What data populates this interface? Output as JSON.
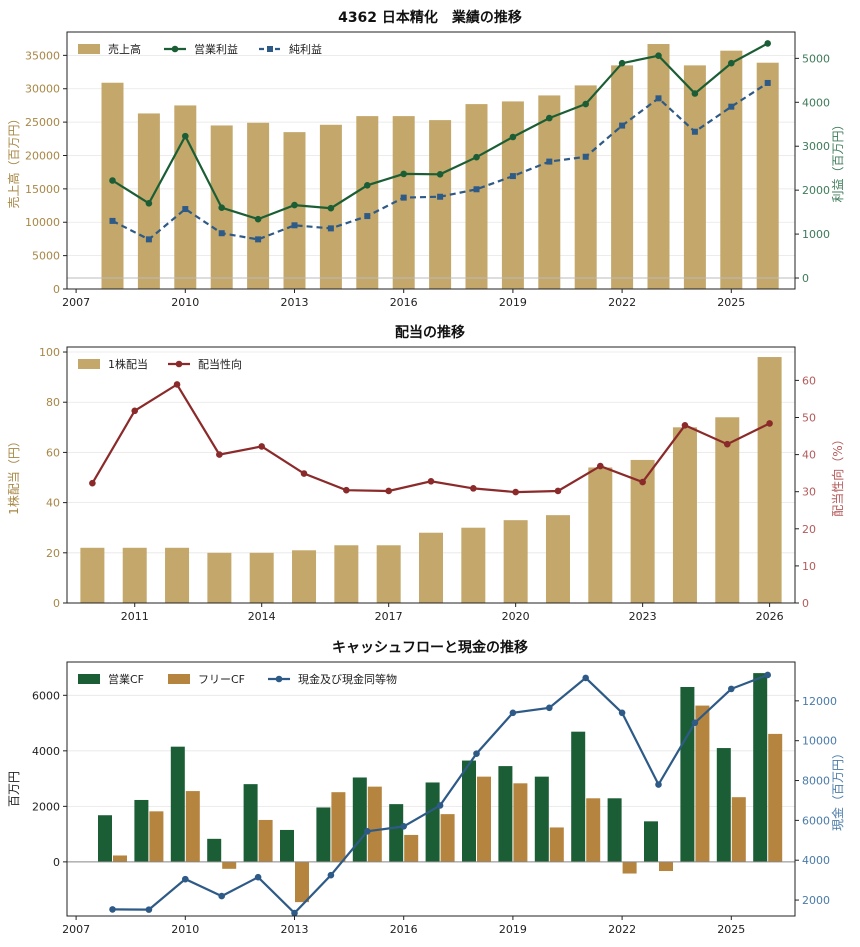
{
  "colors": {
    "gold": "#c4a76b",
    "green": "#1b5e35",
    "blue": "#2e5a87",
    "red": "#8b2a2a",
    "ocher": "#b5843e",
    "gold_text": "#a88746",
    "green_text": "#3e7b5a",
    "blue_text": "#4a7ba8",
    "red_text": "#b45a5a",
    "ink": "#222222"
  },
  "chart_data": [
    {
      "type": "bar",
      "title": "4362 日本精化　業績の推移",
      "ylabel": "売上高（百万円）",
      "y2label": "利益（百万円）",
      "xlim": [
        2006.75,
        2026.75
      ],
      "ylim": [
        0,
        38500
      ],
      "y2lim": [
        -250,
        5600
      ],
      "xticks": [
        2007,
        2010,
        2013,
        2016,
        2019,
        2022,
        2025
      ],
      "yticks": [
        0,
        5000,
        10000,
        15000,
        20000,
        25000,
        30000,
        35000
      ],
      "y2ticks": [
        0,
        1000,
        2000,
        3000,
        4000,
        5000
      ],
      "legend_position": "top-left",
      "x": [
        2008,
        2009,
        2010,
        2011,
        2012,
        2013,
        2014,
        2015,
        2016,
        2017,
        2018,
        2019,
        2020,
        2021,
        2022,
        2023,
        2024,
        2025,
        2026
      ],
      "series": [
        {
          "name": "売上高",
          "kind": "bar",
          "axis": "left",
          "color": "#c4a76b",
          "values": [
            30900,
            26300,
            27500,
            24500,
            24900,
            23500,
            24600,
            25900,
            25900,
            25300,
            27700,
            28100,
            29000,
            30500,
            33500,
            36700,
            33500,
            35700,
            33900
          ]
        },
        {
          "name": "営業利益",
          "kind": "line",
          "axis": "right",
          "color": "#1b5e35",
          "marker": "circle",
          "values": [
            2220,
            1700,
            3230,
            1600,
            1340,
            1660,
            1590,
            2110,
            2370,
            2360,
            2750,
            3210,
            3640,
            3960,
            4890,
            5060,
            4200,
            4890,
            5340
          ]
        },
        {
          "name": "純利益",
          "kind": "line",
          "axis": "right",
          "color": "#2e5a87",
          "marker": "square",
          "dashed": true,
          "values": [
            1300,
            880,
            1570,
            1020,
            880,
            1200,
            1130,
            1410,
            1830,
            1850,
            2020,
            2320,
            2650,
            2760,
            3470,
            4090,
            3330,
            3900,
            4440
          ]
        }
      ]
    },
    {
      "type": "bar",
      "title": "配当の推移",
      "ylabel": "1株配当（円）",
      "y2label": "配当性向（%）",
      "xlim": [
        2009.4,
        2026.6
      ],
      "ylim": [
        0,
        102
      ],
      "y2lim": [
        0,
        69
      ],
      "xticks": [
        2011,
        2014,
        2017,
        2020,
        2023,
        2026
      ],
      "yticks": [
        0,
        20,
        40,
        60,
        80,
        100
      ],
      "y2ticks": [
        0,
        10,
        20,
        30,
        40,
        50,
        60
      ],
      "legend_position": "top-left",
      "x": [
        2010,
        2011,
        2012,
        2013,
        2014,
        2015,
        2016,
        2017,
        2018,
        2019,
        2020,
        2021,
        2022,
        2023,
        2024,
        2025,
        2026
      ],
      "series": [
        {
          "name": "1株配当",
          "kind": "bar",
          "axis": "left",
          "color": "#c4a76b",
          "values": [
            22,
            22,
            22,
            20,
            20,
            21,
            23,
            23,
            28,
            30,
            33,
            35,
            54,
            57,
            70,
            74,
            98
          ]
        },
        {
          "name": "配当性向",
          "kind": "line",
          "axis": "right",
          "color": "#8b2a2a",
          "marker": "circle",
          "values": [
            32.3,
            51.8,
            58.9,
            40.0,
            42.2,
            34.9,
            30.4,
            30.2,
            32.8,
            30.9,
            29.9,
            30.2,
            36.9,
            32.6,
            47.9,
            42.8,
            48.4
          ]
        }
      ]
    },
    {
      "type": "bar",
      "title": "キャッシュフローと現金の推移",
      "ylabel": "百万円",
      "y2label": "現金（百万円）",
      "xlim": [
        2006.75,
        2026.75
      ],
      "ylim": [
        -1950,
        7200
      ],
      "y2lim": [
        1200,
        13950
      ],
      "xticks": [
        2007,
        2010,
        2013,
        2016,
        2019,
        2022,
        2025
      ],
      "yticks": [
        0,
        2000,
        4000,
        6000
      ],
      "y2ticks": [
        2000,
        4000,
        6000,
        8000,
        10000,
        12000
      ],
      "legend_position": "top-left",
      "x": [
        2008,
        2009,
        2010,
        2011,
        2012,
        2013,
        2014,
        2015,
        2016,
        2017,
        2018,
        2019,
        2020,
        2021,
        2022,
        2023,
        2024,
        2025,
        2026
      ],
      "series": [
        {
          "name": "営業CF",
          "kind": "bar",
          "axis": "left",
          "color": "#1b5e35",
          "values": [
            1680,
            2230,
            4150,
            830,
            2800,
            1150,
            1960,
            3040,
            2080,
            2860,
            3650,
            3450,
            3070,
            4690,
            2290,
            1460,
            6300,
            4100,
            6800
          ]
        },
        {
          "name": "フリーCF",
          "kind": "bar",
          "axis": "left",
          "color": "#b5843e",
          "values": [
            230,
            1820,
            2550,
            -250,
            1510,
            -1450,
            2510,
            2710,
            970,
            1720,
            3070,
            2830,
            1240,
            2290,
            -420,
            -330,
            5630,
            2330,
            4610
          ]
        },
        {
          "name": "現金及び現金同等物",
          "kind": "line",
          "axis": "right",
          "color": "#2e5a87",
          "marker": "circle",
          "values": [
            1530,
            1520,
            3050,
            2200,
            3150,
            1350,
            3250,
            5450,
            5700,
            6750,
            9350,
            11400,
            11650,
            13150,
            11400,
            7800,
            10900,
            12600,
            13300
          ]
        }
      ]
    }
  ]
}
